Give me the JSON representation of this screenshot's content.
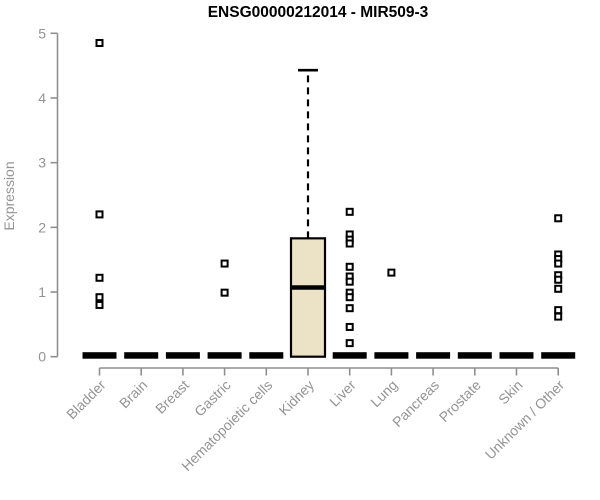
{
  "title": "ENSG00000212014 - MIR509-3",
  "chart_data": {
    "type": "boxplot",
    "title": "ENSG00000212014 - MIR509-3",
    "xlabel": "",
    "ylabel": "Expression",
    "ylim": [
      0,
      5
    ],
    "yticks": [
      0,
      1,
      2,
      3,
      4,
      5
    ],
    "grid": false,
    "legend": "none",
    "categories": [
      "Bladder",
      "Brain",
      "Breast",
      "Gastric",
      "Hematopoietic cells",
      "Kidney",
      "Liver",
      "Lung",
      "Pancreas",
      "Prostate",
      "Skin",
      "Unknown / Other"
    ],
    "boxes": [
      {
        "category": "Bladder",
        "whisker_low": 0,
        "q1": 0,
        "median": 0,
        "q3": 0,
        "whisker_high": 0,
        "outliers": [
          4.85,
          2.2,
          1.22,
          0.92,
          0.8
        ]
      },
      {
        "category": "Brain",
        "whisker_low": 0,
        "q1": 0,
        "median": 0,
        "q3": 0,
        "whisker_high": 0,
        "outliers": []
      },
      {
        "category": "Breast",
        "whisker_low": 0,
        "q1": 0,
        "median": 0,
        "q3": 0,
        "whisker_high": 0,
        "outliers": []
      },
      {
        "category": "Gastric",
        "whisker_low": 0,
        "q1": 0,
        "median": 0,
        "q3": 0,
        "whisker_high": 0,
        "outliers": [
          1.44,
          0.99
        ]
      },
      {
        "category": "Hematopoietic cells",
        "whisker_low": 0,
        "q1": 0,
        "median": 0,
        "q3": 0,
        "whisker_high": 0,
        "outliers": []
      },
      {
        "category": "Kidney",
        "whisker_low": 0,
        "q1": 0,
        "median": 1.07,
        "q3": 1.83,
        "whisker_high": 4.43,
        "outliers": []
      },
      {
        "category": "Liver",
        "whisker_low": 0,
        "q1": 0,
        "median": 0,
        "q3": 0,
        "whisker_high": 0,
        "outliers": [
          2.24,
          1.89,
          1.81,
          1.75,
          1.39,
          1.24,
          1.16,
          0.99,
          0.92,
          0.75,
          0.46,
          0.21
        ]
      },
      {
        "category": "Lung",
        "whisker_low": 0,
        "q1": 0,
        "median": 0,
        "q3": 0,
        "whisker_high": 0,
        "outliers": [
          1.3
        ]
      },
      {
        "category": "Pancreas",
        "whisker_low": 0,
        "q1": 0,
        "median": 0,
        "q3": 0,
        "whisker_high": 0,
        "outliers": []
      },
      {
        "category": "Prostate",
        "whisker_low": 0,
        "q1": 0,
        "median": 0,
        "q3": 0,
        "whisker_high": 0,
        "outliers": []
      },
      {
        "category": "Skin",
        "whisker_low": 0,
        "q1": 0,
        "median": 0,
        "q3": 0,
        "whisker_high": 0,
        "outliers": []
      },
      {
        "category": "Unknown / Other",
        "whisker_low": 0,
        "q1": 0,
        "median": 0,
        "q3": 0,
        "whisker_high": 0,
        "outliers": [
          2.14,
          1.58,
          1.51,
          1.44,
          1.26,
          1.19,
          1.05,
          0.72,
          0.62
        ]
      }
    ],
    "colors": {
      "box_fill": "#ece2c6",
      "box_stroke": "#000000",
      "median": "#000000",
      "outlier_stroke": "#000000",
      "outlier_fill": "#ffffff",
      "axis": "#8f8f8f",
      "tick_text": "#949494",
      "title_text": "#000000",
      "background": "#ffffff"
    }
  }
}
